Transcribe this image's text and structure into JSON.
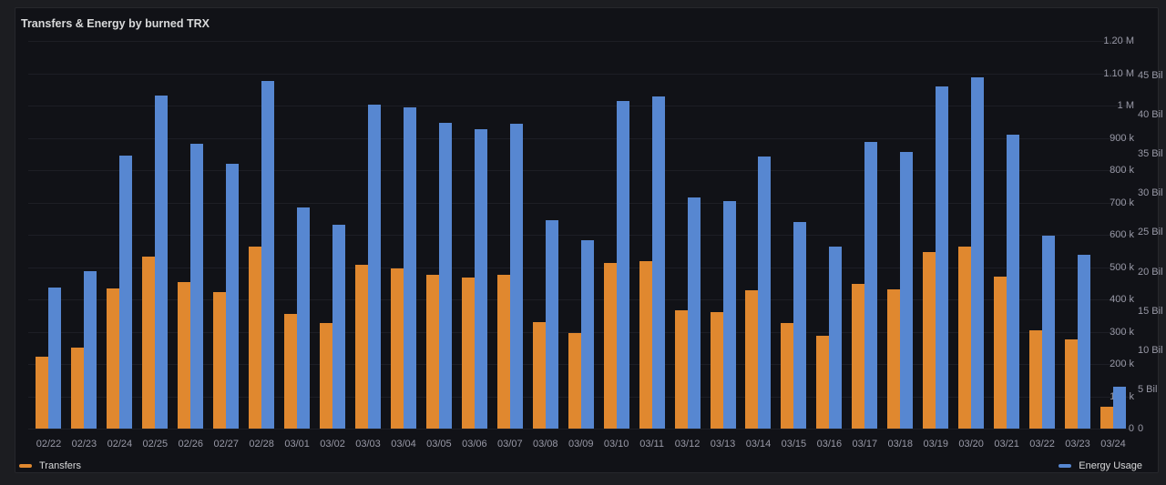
{
  "panel": {
    "title": "Transfers & Energy by burned TRX",
    "legend": [
      {
        "label": "Transfers",
        "color": "#E0882F"
      },
      {
        "label": "Energy Usage",
        "color": "#5787D1"
      }
    ]
  },
  "chart_data": {
    "type": "bar",
    "title": "Transfers & Energy by burned TRX",
    "categories": [
      "02/22",
      "02/23",
      "02/24",
      "02/25",
      "02/26",
      "02/27",
      "02/28",
      "03/01",
      "03/02",
      "03/03",
      "03/04",
      "03/05",
      "03/06",
      "03/07",
      "03/08",
      "03/09",
      "03/10",
      "03/11",
      "03/12",
      "03/13",
      "03/14",
      "03/15",
      "03/16",
      "03/17",
      "03/18",
      "03/19",
      "03/20",
      "03/21",
      "03/22",
      "03/23",
      "03/24"
    ],
    "series": [
      {
        "name": "Transfers",
        "yaxis": "left",
        "color": "#E0882F",
        "values": [
          222000,
          252000,
          435000,
          533000,
          454000,
          423000,
          563000,
          355000,
          327000,
          507000,
          496000,
          477000,
          467000,
          475000,
          329000,
          296000,
          514000,
          519000,
          366000,
          361000,
          429000,
          326000,
          286000,
          448000,
          432000,
          547000,
          563000,
          470000,
          305000,
          277000,
          68000
        ]
      },
      {
        "name": "Energy Usage",
        "yaxis": "right",
        "unit": "Bil",
        "color": "#5787D1",
        "values": [
          18.0,
          20.1,
          34.8,
          42.5,
          36.3,
          33.8,
          44.3,
          28.2,
          26.0,
          41.3,
          40.9,
          39.0,
          38.1,
          38.9,
          26.5,
          24.0,
          41.8,
          42.3,
          29.5,
          29.0,
          34.7,
          26.3,
          23.2,
          36.5,
          35.3,
          43.6,
          44.8,
          37.5,
          24.6,
          22.1,
          5.3
        ]
      }
    ],
    "left_axis": {
      "range": [
        0,
        1200000
      ],
      "tick_values": [
        0,
        100000,
        200000,
        300000,
        400000,
        500000,
        600000,
        700000,
        800000,
        900000,
        1000000,
        1100000,
        1200000
      ],
      "tick_labels": [
        "0",
        "100 k",
        "200 k",
        "300 k",
        "400 k",
        "500 k",
        "600 k",
        "700 k",
        "800 k",
        "900 k",
        "1 M",
        "1.10 M",
        "1.20 M"
      ]
    },
    "right_axis": {
      "range_bil": [
        0,
        49.4
      ],
      "tick_values_bil": [
        0,
        5,
        10,
        15,
        20,
        25,
        30,
        35,
        40,
        45
      ],
      "tick_labels": [
        "0",
        "5 Bil",
        "10 Bil",
        "15 Bil",
        "20 Bil",
        "25 Bil",
        "30 Bil",
        "35 Bil",
        "40 Bil",
        "45 Bil"
      ]
    },
    "grid": true,
    "legend_position": "bottom"
  }
}
